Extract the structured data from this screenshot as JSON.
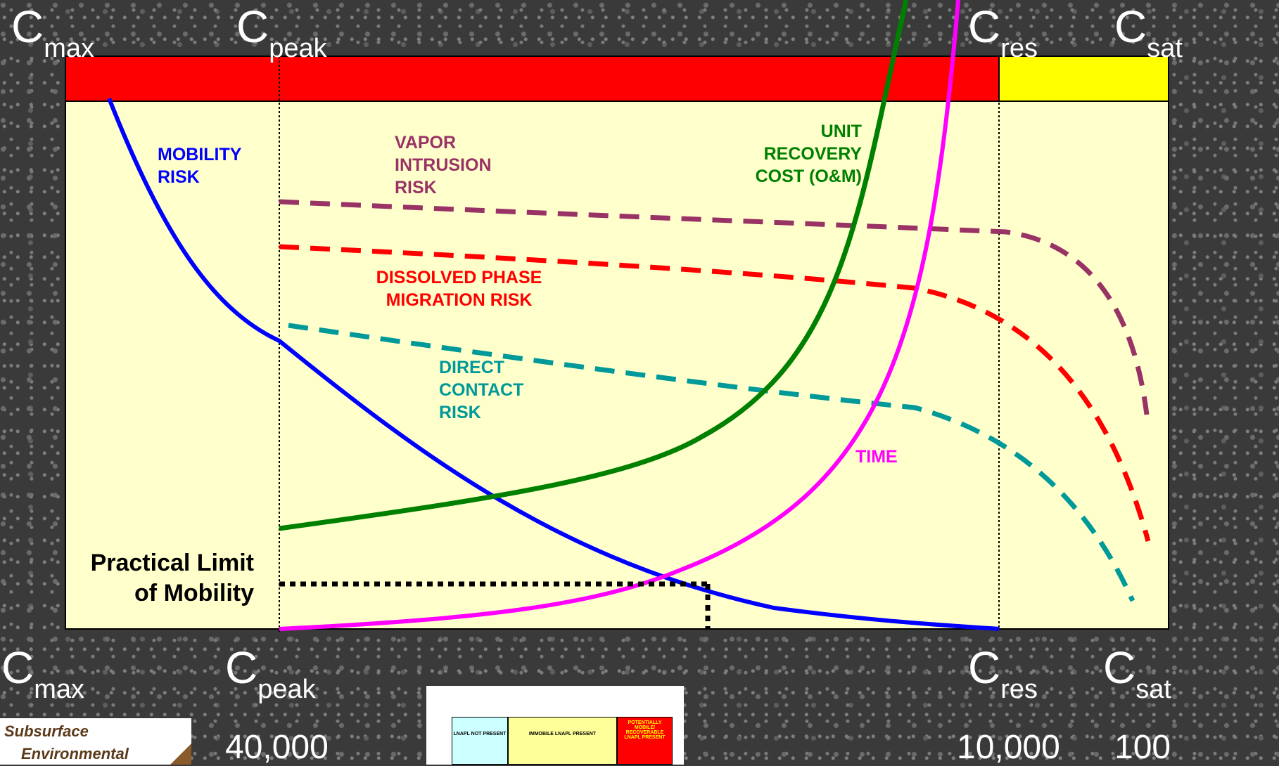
{
  "top_labels": {
    "c_max": {
      "base": "C",
      "sub": "max"
    },
    "c_peak": {
      "base": "C",
      "sub": "peak"
    },
    "c_res": {
      "base": "C",
      "sub": "res"
    },
    "c_sat": {
      "base": "C",
      "sub": "sat"
    }
  },
  "bottom_labels": {
    "c_max": {
      "base": "C",
      "sub": "max"
    },
    "c_peak": {
      "base": "C",
      "sub": "peak"
    },
    "c_res": {
      "base": "C",
      "sub": "res"
    },
    "c_sat": {
      "base": "C",
      "sub": "sat"
    }
  },
  "bottom_values": {
    "peak": "40,000",
    "res": "10,000",
    "sat": "100"
  },
  "curves": {
    "mobility": {
      "line1": "MOBILITY",
      "line2": "RISK",
      "color": "#0000ff"
    },
    "vapor": {
      "line1": "VAPOR",
      "line2": "INTRUSION",
      "line3": "RISK",
      "color": "#993366"
    },
    "dissolved": {
      "line1": "DISSOLVED PHASE",
      "line2": "MIGRATION RISK",
      "color": "#ff0000"
    },
    "direct": {
      "line1": "DIRECT",
      "line2": "CONTACT",
      "line3": "RISK",
      "color": "#009999"
    },
    "cost": {
      "line1": "UNIT",
      "line2": "RECOVERY",
      "line3": "COST (O&M)",
      "color": "#008000"
    },
    "time": {
      "label": "TIME",
      "color": "#ff00ff"
    }
  },
  "practical_limit": {
    "line1": "Practical Limit",
    "line2": "of Mobility"
  },
  "bands": {
    "red": "#ff0000",
    "yellow": "#ffff00",
    "panel": "#ffffcc"
  },
  "logo": {
    "line1": "Subsurface",
    "line2": "Environmental"
  },
  "mini_diagram": {
    "box1": "LNAPL NOT PRESENT",
    "box2": "IMMOBILE LNAPL PRESENT",
    "box3": "POTENTIALLY MOBILE/ RECOVERABLE LNAPL PRESENT"
  }
}
